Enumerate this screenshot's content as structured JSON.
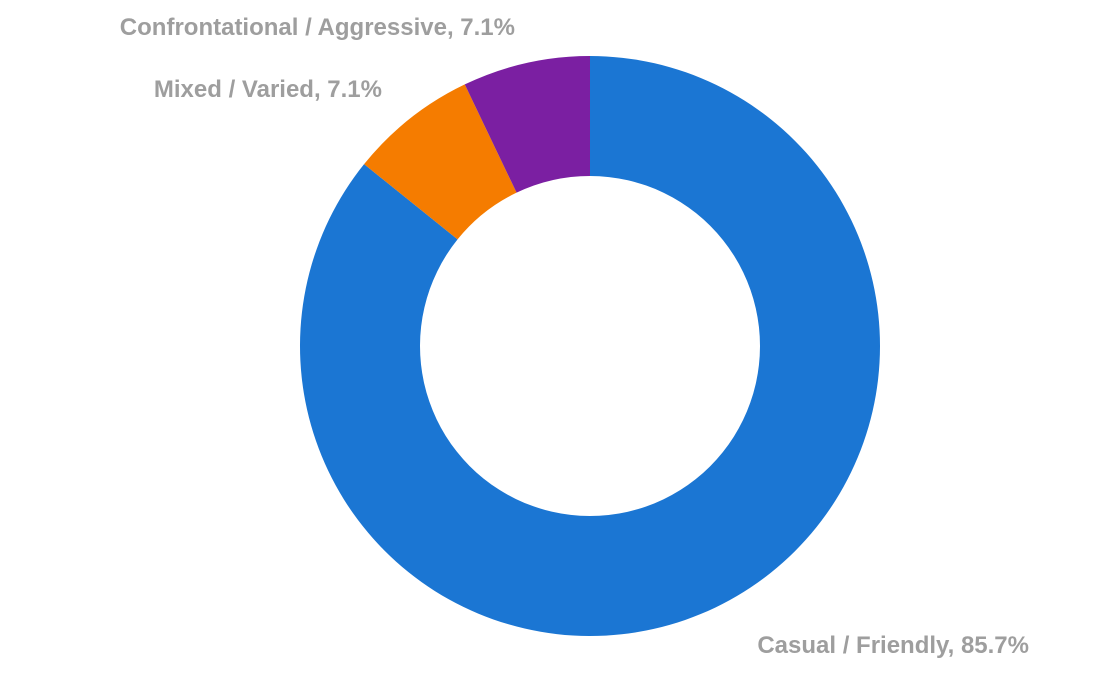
{
  "chart_data": {
    "type": "pie",
    "variant": "donut",
    "title": "",
    "legend": "none",
    "label_color": "#9e9e9e",
    "slices": [
      {
        "label": "Casual / Friendly, 85.7%",
        "name": "Casual / Friendly",
        "value": 85.7,
        "color": "#1b76d3"
      },
      {
        "label": "Mixed / Varied, 7.1%",
        "name": "Mixed / Varied",
        "value": 7.1,
        "color": "#f57c00"
      },
      {
        "label": "Confrontational / Aggressive, 7.1%",
        "name": "Confrontational / Aggressive",
        "value": 7.1,
        "color": "#7b1fa2"
      }
    ]
  }
}
